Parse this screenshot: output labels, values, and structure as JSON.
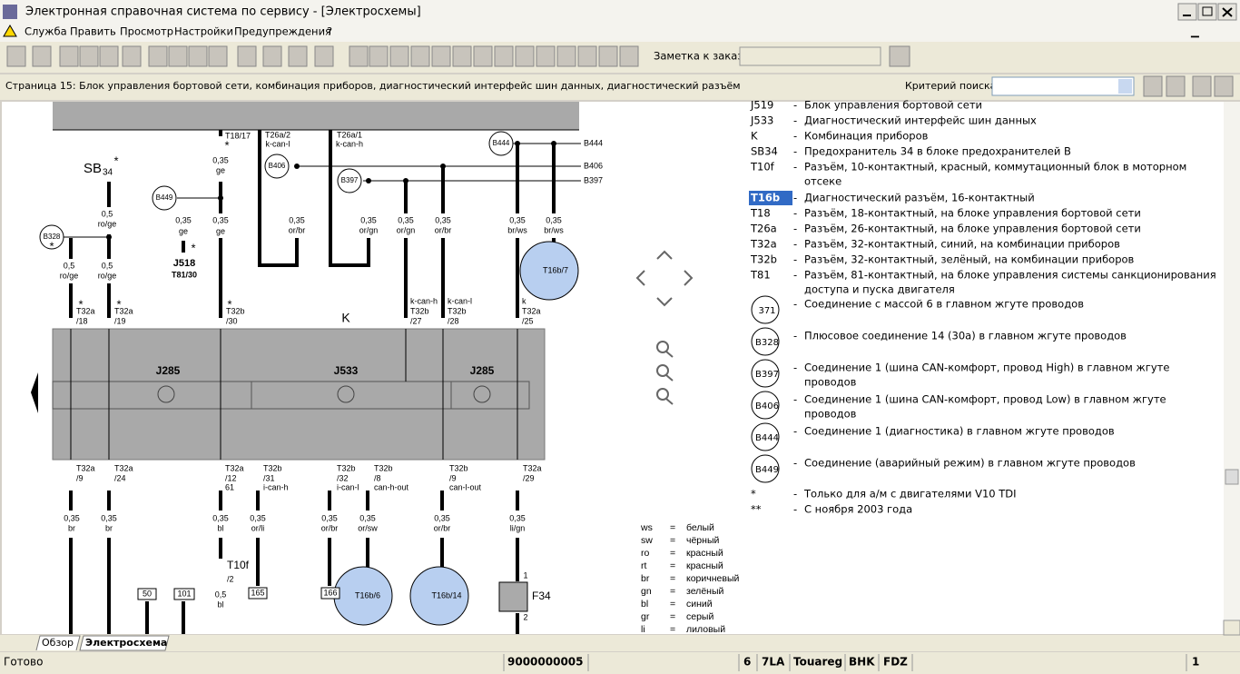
{
  "window": {
    "title": "Электронная справочная система по сервису - [Электросхемы]"
  },
  "menu": [
    "Служба",
    "Править",
    "Просмотр",
    "Настройки",
    "Предупреждения",
    "?"
  ],
  "toolbar": {
    "note_label": "Заметка к заказу:"
  },
  "page_bar": {
    "heading": "Страница 15: Блок управления бортовой сети, комбинация приборов, диагностический интерфейс шин данных, диагностический разъём",
    "search_label": "Критерий поиска:"
  },
  "diagram": {
    "labels": [
      "T18/17",
      "T26a/2",
      "k-can-l",
      "T26a/1",
      "k-can-h",
      "B444",
      "B444",
      "B406",
      "B406",
      "B397",
      "B397",
      "*",
      "0,35",
      "ge",
      "SB",
      "34",
      "*",
      "B449",
      "0,5",
      "ro/ge",
      "0,35",
      "ge",
      "0,35",
      "ge",
      "*",
      "J518",
      "T81/30",
      "B328",
      "*",
      "0,5",
      "ro/ge",
      "0,5",
      "ro/ge",
      "0,35",
      "or/br",
      "0,35",
      "or/gn",
      "0,35",
      "or/gn",
      "0,35",
      "or/br",
      "0,35",
      "br/ws",
      "0,35",
      "br/ws",
      "T16b/7",
      "*",
      "T32a",
      "/18",
      "*",
      "T32a",
      "/19",
      "*",
      "T32b",
      "/30",
      "k-can-h",
      "T32b",
      "/27",
      "k-can-l",
      "T32b",
      "/28",
      "k",
      "T32a",
      "/25",
      "K",
      "J285",
      "J533",
      "J285",
      "T32a",
      "/9",
      "T32a",
      "/24",
      "T32a",
      "/12",
      "61",
      "T32b",
      "/31",
      "i-can-h",
      "T32b",
      "/32",
      "i-can-l",
      "T32b",
      "/8",
      "can-h-out",
      "T32b",
      "/9",
      "can-l-out",
      "T32a",
      "/29",
      "0,35",
      "br",
      "0,35",
      "br",
      "0,35",
      "bl",
      "0,35",
      "or/li",
      "0,35",
      "or/br",
      "0,35",
      "or/sw",
      "0,35",
      "or/br",
      "0,35",
      "li/gn",
      "T10f",
      "/2",
      "0,5",
      "bl",
      "165",
      "166",
      "50",
      "101",
      "T16b/6",
      "T16b/14",
      "F34",
      "1",
      "2"
    ]
  },
  "legend": {
    "separator": "-",
    "items": [
      {
        "code": "J519",
        "lines": [
          "Блок управления бортовой сети"
        ]
      },
      {
        "code": "J533",
        "lines": [
          "Диагностический интерфейс шин данных"
        ]
      },
      {
        "code": "K",
        "lines": [
          "Комбинация приборов"
        ]
      },
      {
        "code": "SB34",
        "lines": [
          "Предохранитель 34 в блоке предохранителей В"
        ]
      },
      {
        "code": "T10f",
        "lines": [
          "Разъём, 10-контактный, красный, коммутационный блок в моторном",
          "отсеке"
        ]
      },
      {
        "code": "T16b",
        "lines": [
          "Диагностический разъём, 16-контактный"
        ]
      },
      {
        "code": "T18",
        "lines": [
          "Разъём, 18-контактный, на блоке управления бортовой сети"
        ]
      },
      {
        "code": "T26a",
        "lines": [
          "Разъём, 26-контактный, на блоке управления бортовой сети"
        ]
      },
      {
        "code": "T32a",
        "lines": [
          "Разъём, 32-контактный, синий, на комбинации приборов"
        ]
      },
      {
        "code": "T32b",
        "lines": [
          "Разъём, 32-контактный, зелёный, на комбинации приборов"
        ]
      },
      {
        "code": "T81",
        "lines": [
          "Разъём, 81-контактный, на блоке управления системы санкционирования",
          "доступа и пуска двигателя"
        ]
      }
    ],
    "circles": [
      {
        "code": "371",
        "lines": [
          "Соединение с массой 6 в главном жгуте проводов"
        ]
      },
      {
        "code": "B328",
        "lines": [
          "Плюсовое соединение 14 (30а) в главном жгуте проводов"
        ]
      },
      {
        "code": "B397",
        "lines": [
          "Соединение 1 (шина CAN-комфорт, провод High) в главном жгуте",
          "проводов"
        ]
      },
      {
        "code": "B406",
        "lines": [
          "Соединение 1 (шина CAN-комфорт, провод Low) в главном жгуте",
          "проводов"
        ]
      },
      {
        "code": "B444",
        "lines": [
          "Соединение 1 (диагностика) в главном жгуте проводов"
        ]
      },
      {
        "code": "B449",
        "lines": [
          "Соединение (аварийный режим) в главном жгуте проводов"
        ]
      }
    ],
    "notes": [
      {
        "code": "*",
        "text": "Только для а/м с двигателями V10 TDI"
      },
      {
        "code": "**",
        "text": "С ноября 2003 года"
      }
    ]
  },
  "colors": {
    "equals": "=",
    "items": [
      {
        "code": "ws",
        "name": "белый"
      },
      {
        "code": "sw",
        "name": "чёрный"
      },
      {
        "code": "ro",
        "name": "красный"
      },
      {
        "code": "rt",
        "name": "красный"
      },
      {
        "code": "br",
        "name": "коричневый"
      },
      {
        "code": "gn",
        "name": "зелёный"
      },
      {
        "code": "bl",
        "name": "синий"
      },
      {
        "code": "gr",
        "name": "серый"
      },
      {
        "code": "li",
        "name": "лиловый"
      }
    ]
  },
  "tabs": [
    "Обзор",
    "Электросхема"
  ],
  "status": [
    "Готово",
    "9000000005",
    "6",
    "7LA",
    "Touareg",
    "BHK",
    "FDZ",
    "1"
  ]
}
